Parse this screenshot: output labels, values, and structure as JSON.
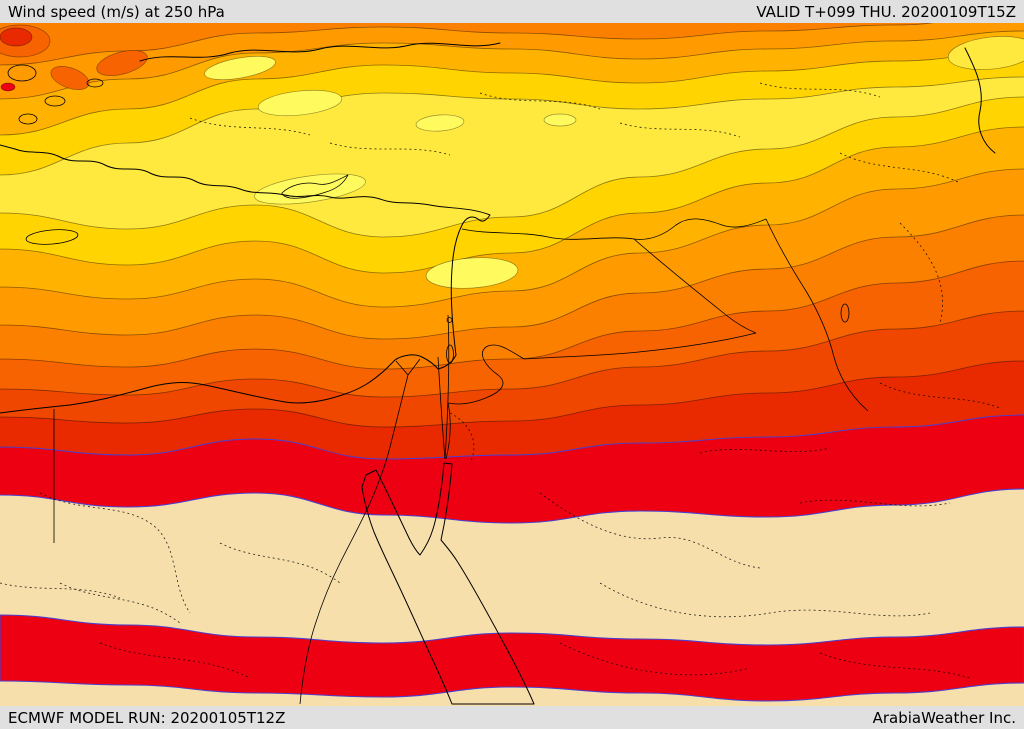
{
  "header": {
    "title": "Wind speed (m/s) at 250 hPa",
    "valid": "VALID T+099 THU. 20200109T15Z"
  },
  "footer": {
    "model_run": "ECMWF MODEL RUN: 20200105T12Z",
    "brand": "ArabiaWeather Inc."
  },
  "map": {
    "palette": {
      "cream": "#F7DFAC",
      "yellow_bright": "#FFFB5E",
      "yellow": "#FFE93E",
      "golden": "#FFD400",
      "orange1": "#FFB300",
      "orange2": "#FF9A00",
      "orange3": "#FC8000",
      "orange4": "#F66300",
      "orange5": "#EF4700",
      "red1": "#E92A00",
      "red2": "#EE0013",
      "sea_white": "#FFFFFF",
      "contour_blue": "#4A3FD0",
      "bar_bg": "#E0E0E0"
    }
  }
}
